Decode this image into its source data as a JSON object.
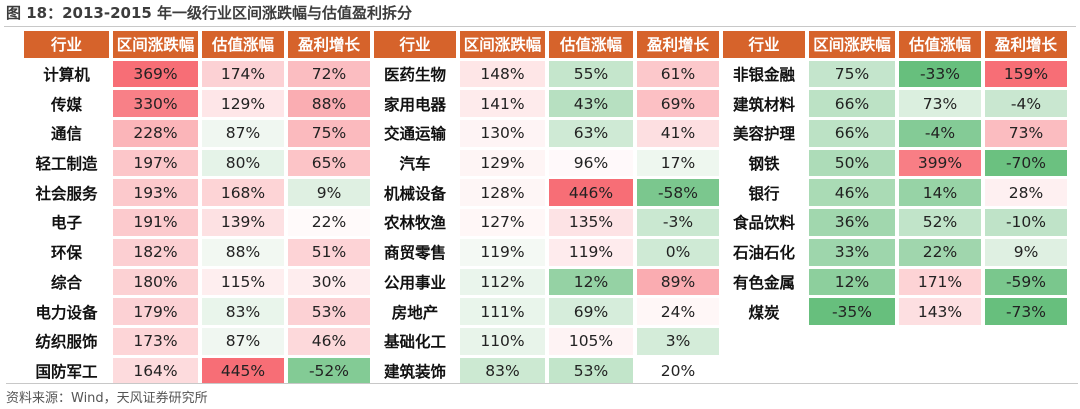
{
  "title": "图 18：2013-2015 年一级行业区间涨跌幅与估值盈利拆分",
  "source": "资料来源：Wind，天风证券研究所",
  "headers": [
    "行业",
    "区间涨跌幅",
    "估值涨幅",
    "盈利增长"
  ],
  "groups": [
    [
      {
        "name": "计算机",
        "range": "369%",
        "val": "174%",
        "profit": "72%"
      },
      {
        "name": "传媒",
        "range": "330%",
        "val": "129%",
        "profit": "88%"
      },
      {
        "name": "通信",
        "range": "228%",
        "val": "87%",
        "profit": "75%"
      },
      {
        "name": "轻工制造",
        "range": "197%",
        "val": "80%",
        "profit": "65%"
      },
      {
        "name": "社会服务",
        "range": "193%",
        "val": "168%",
        "profit": "9%"
      },
      {
        "name": "电子",
        "range": "191%",
        "val": "139%",
        "profit": "22%"
      },
      {
        "name": "环保",
        "range": "182%",
        "val": "88%",
        "profit": "51%"
      },
      {
        "name": "综合",
        "range": "180%",
        "val": "115%",
        "profit": "30%"
      },
      {
        "name": "电力设备",
        "range": "179%",
        "val": "83%",
        "profit": "53%"
      },
      {
        "name": "纺织服饰",
        "range": "173%",
        "val": "87%",
        "profit": "46%"
      },
      {
        "name": "国防军工",
        "range": "164%",
        "val": "445%",
        "profit": "-52%"
      }
    ],
    [
      {
        "name": "医药生物",
        "range": "148%",
        "val": "55%",
        "profit": "61%"
      },
      {
        "name": "家用电器",
        "range": "141%",
        "val": "43%",
        "profit": "69%"
      },
      {
        "name": "交通运输",
        "range": "130%",
        "val": "63%",
        "profit": "41%"
      },
      {
        "name": "汽车",
        "range": "129%",
        "val": "96%",
        "profit": "17%"
      },
      {
        "name": "机械设备",
        "range": "128%",
        "val": "446%",
        "profit": "-58%"
      },
      {
        "name": "农林牧渔",
        "range": "127%",
        "val": "135%",
        "profit": "-3%"
      },
      {
        "name": "商贸零售",
        "range": "119%",
        "val": "119%",
        "profit": "0%"
      },
      {
        "name": "公用事业",
        "range": "112%",
        "val": "12%",
        "profit": "89%"
      },
      {
        "name": "房地产",
        "range": "111%",
        "val": "69%",
        "profit": "24%"
      },
      {
        "name": "基础化工",
        "range": "110%",
        "val": "105%",
        "profit": "3%"
      },
      {
        "name": "建筑装饰",
        "range": "83%",
        "val": "53%",
        "profit": "20%"
      }
    ],
    [
      {
        "name": "非银金融",
        "range": "75%",
        "val": "-33%",
        "profit": "159%"
      },
      {
        "name": "建筑材料",
        "range": "66%",
        "val": "73%",
        "profit": "-4%"
      },
      {
        "name": "美容护理",
        "range": "66%",
        "val": "-4%",
        "profit": "73%"
      },
      {
        "name": "钢铁",
        "range": "50%",
        "val": "399%",
        "profit": "-70%"
      },
      {
        "name": "银行",
        "range": "46%",
        "val": "14%",
        "profit": "28%"
      },
      {
        "name": "食品饮料",
        "range": "36%",
        "val": "52%",
        "profit": "-10%"
      },
      {
        "name": "石油石化",
        "range": "33%",
        "val": "22%",
        "profit": "9%"
      },
      {
        "name": "有色金属",
        "range": "12%",
        "val": "171%",
        "profit": "-59%"
      },
      {
        "name": "煤炭",
        "range": "-35%",
        "val": "143%",
        "profit": "-73%"
      }
    ]
  ]
}
